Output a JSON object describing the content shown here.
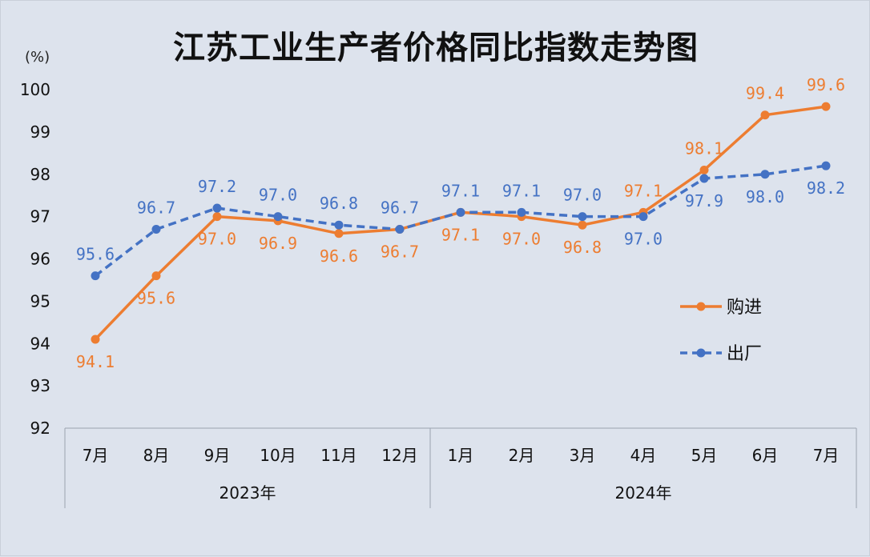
{
  "chart_data": {
    "type": "line",
    "title": "江苏工业生产者价格同比指数走势图",
    "unit": "(%)",
    "categories": [
      "7月",
      "8月",
      "9月",
      "10月",
      "11月",
      "12月",
      "1月",
      "2月",
      "3月",
      "4月",
      "5月",
      "6月",
      "7月"
    ],
    "year_groups": [
      {
        "label": "2023年",
        "count": 6
      },
      {
        "label": "2024年",
        "count": 7
      }
    ],
    "ylim": [
      92,
      100
    ],
    "yticks": [
      92,
      93,
      94,
      95,
      96,
      97,
      98,
      99,
      100
    ],
    "grid": false,
    "legend_position": "right",
    "series": [
      {
        "name": "购进",
        "style": "solid",
        "color": "#ed7d31",
        "values": [
          94.1,
          95.6,
          97.0,
          96.9,
          96.6,
          96.7,
          97.1,
          97.0,
          96.8,
          97.1,
          98.1,
          99.4,
          99.6
        ],
        "labels": [
          "94.1",
          "95.6",
          "97.0",
          "96.9",
          "96.6",
          "96.7",
          "97.1",
          "97.0",
          "96.8",
          "97.1",
          "98.1",
          "99.4",
          "99.6"
        ]
      },
      {
        "name": "出厂",
        "style": "dashed",
        "color": "#4472c4",
        "values": [
          95.6,
          96.7,
          97.2,
          97.0,
          96.8,
          96.7,
          97.1,
          97.1,
          97.0,
          97.0,
          97.9,
          98.0,
          98.2
        ],
        "labels": [
          "95.6",
          "96.7",
          "97.2",
          "97.0",
          "96.8",
          "96.7",
          "97.1",
          "97.1",
          "97.0",
          "97.0",
          "97.9",
          "98.0",
          "98.2"
        ]
      }
    ]
  }
}
